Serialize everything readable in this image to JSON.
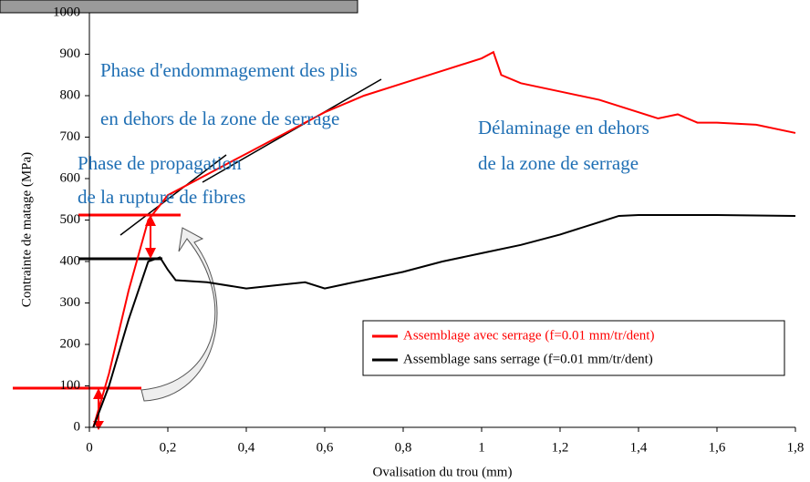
{
  "chart_data": {
    "type": "line",
    "xlabel": "Ovalisation du trou (mm)",
    "ylabel": "Contrainte de matage (MPa)",
    "xlim": [
      0,
      1.8
    ],
    "ylim": [
      0,
      1000
    ],
    "xticks": [
      0,
      {
        "value": 0.2,
        "label": "0,2"
      },
      {
        "value": 0.4,
        "label": "0,4"
      },
      {
        "value": 0.6,
        "label": "0,6"
      },
      {
        "value": 0.8,
        "label": "0,8"
      },
      1,
      {
        "value": 1.2,
        "label": "1,2"
      },
      {
        "value": 1.4,
        "label": "1,4"
      },
      {
        "value": 1.6,
        "label": "1,6"
      },
      {
        "value": 1.8,
        "label": "1,8"
      }
    ],
    "yticks": [
      0,
      100,
      200,
      300,
      400,
      500,
      600,
      700,
      800,
      900,
      1000
    ],
    "legend": "lower right",
    "series": [
      {
        "name": "Assemblage avec serrage (f=0.01 mm/tr/dent)",
        "color": "#ff0000",
        "x": [
          0.01,
          0.05,
          0.1,
          0.15,
          0.2,
          0.3,
          0.4,
          0.5,
          0.6,
          0.7,
          0.8,
          0.9,
          1.0,
          1.03,
          1.05,
          1.1,
          1.2,
          1.3,
          1.4,
          1.45,
          1.5,
          1.55,
          1.6,
          1.7,
          1.8
        ],
        "values": [
          0,
          130,
          330,
          500,
          560,
          610,
          660,
          710,
          760,
          800,
          830,
          860,
          890,
          905,
          850,
          830,
          810,
          790,
          760,
          745,
          755,
          735,
          735,
          730,
          710
        ]
      },
      {
        "name": "Assemblage sans serrage (f=0.01 mm/tr/dent)",
        "color": "#000000",
        "x": [
          0.01,
          0.05,
          0.1,
          0.15,
          0.18,
          0.2,
          0.22,
          0.3,
          0.4,
          0.5,
          0.55,
          0.6,
          0.7,
          0.8,
          0.9,
          1.0,
          1.1,
          1.2,
          1.3,
          1.35,
          1.4,
          1.6,
          1.8
        ],
        "values": [
          0,
          100,
          260,
          400,
          410,
          380,
          355,
          350,
          335,
          345,
          350,
          335,
          355,
          375,
          400,
          420,
          440,
          465,
          495,
          510,
          512,
          512,
          510
        ]
      }
    ],
    "annotations": [
      {
        "text": "Phase d'endommagement des plis"
      },
      {
        "text": "en dehors de la zone de serrage"
      },
      {
        "text": "Délaminage  en  dehors"
      },
      {
        "text": "de la zone de serrage"
      },
      {
        "text": "Phase de propagation"
      },
      {
        "text": "de la rupture de fibres"
      }
    ]
  }
}
